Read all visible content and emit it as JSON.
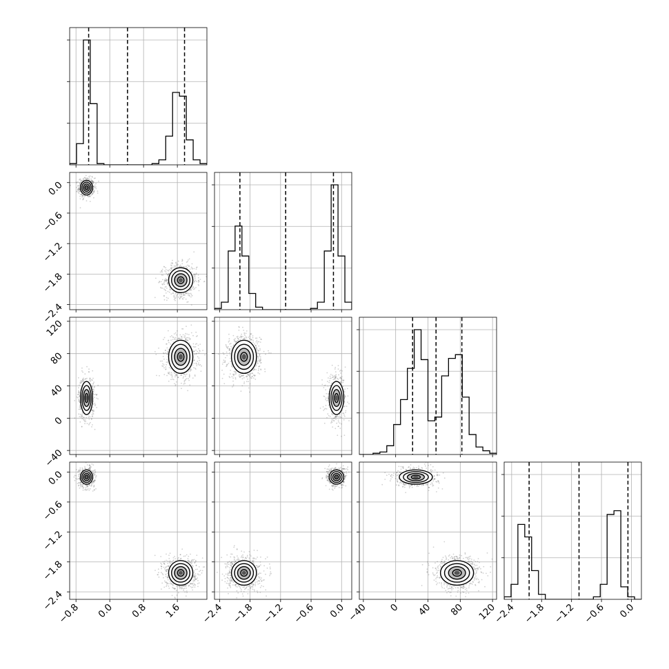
{
  "chart_data": {
    "type": "corner",
    "parameters": [
      {
        "lim": [
          -0.95,
          2.3
        ],
        "ticks": [
          -0.8,
          0.0,
          0.8,
          1.6
        ],
        "tick_labels": [
          "−0.8",
          "0.0",
          "0.8",
          "1.6"
        ],
        "quantiles": [
          -0.5,
          0.42,
          1.77
        ],
        "hist": {
          "start": -0.95,
          "width": 0.1625,
          "counts": [
            0.01,
            0.17,
            1.0,
            0.49,
            0.01,
            0,
            0,
            0,
            0,
            0,
            0,
            0,
            0.01,
            0.04,
            0.23,
            0.58,
            0.55,
            0.2,
            0.04,
            0.01
          ]
        }
      },
      {
        "lim": [
          -2.5,
          0.2
        ],
        "ticks": [
          -2.4,
          -1.8,
          -1.2,
          -0.6,
          0.0
        ],
        "tick_labels": [
          "−2.4",
          "−1.8",
          "−1.2",
          "−0.6",
          "0.0"
        ],
        "quantiles": [
          -2.0,
          -1.1,
          -0.16
        ],
        "hist": {
          "start": -2.5,
          "width": 0.135,
          "counts": [
            0.01,
            0.06,
            0.47,
            0.67,
            0.43,
            0.13,
            0.02,
            0,
            0,
            0,
            0,
            0,
            0,
            0,
            0.01,
            0.06,
            0.47,
            1.0,
            0.43,
            0.06
          ]
        }
      },
      {
        "lim": [
          -45,
          125
        ],
        "ticks": [
          -40,
          0,
          40,
          80,
          120
        ],
        "tick_labels": [
          "−40",
          "0",
          "40",
          "80",
          "120"
        ],
        "quantiles": [
          21,
          50,
          82
        ],
        "hist": {
          "start": -45,
          "width": 8.5,
          "counts": [
            0,
            0,
            0.01,
            0.02,
            0.07,
            0.24,
            0.44,
            0.69,
            1.0,
            0.76,
            0.27,
            0.3,
            0.63,
            0.77,
            0.8,
            0.46,
            0.16,
            0.06,
            0.03,
            0.01
          ]
        }
      },
      {
        "lim": [
          -2.55,
          0.2
        ],
        "ticks": [
          -2.4,
          -1.8,
          -1.2,
          -0.6,
          0.0
        ],
        "tick_labels": [
          "−2.4",
          "−1.8",
          "−1.2",
          "−0.6",
          "0.0"
        ],
        "quantiles": [
          -2.05,
          -1.05,
          -0.07
        ],
        "hist": {
          "start": -2.55,
          "width": 0.1375,
          "counts": [
            0.02,
            0.12,
            0.6,
            0.5,
            0.23,
            0.04,
            0,
            0,
            0,
            0,
            0,
            0,
            0,
            0.02,
            0.12,
            0.68,
            0.71,
            0.1,
            0.02,
            0
          ]
        }
      }
    ],
    "modes": [
      {
        "weight": 0.4,
        "means": [
          -0.55,
          -0.1,
          25,
          -0.1
        ],
        "sds": [
          0.07,
          0.07,
          10,
          0.07
        ]
      },
      {
        "weight": 0.6,
        "means": [
          1.68,
          -1.92,
          76,
          -2.02
        ],
        "sds": [
          0.14,
          0.12,
          10,
          0.12
        ]
      }
    ],
    "grid": true,
    "contour_levels": [
      0.39,
      0.86,
      1.0
    ]
  }
}
